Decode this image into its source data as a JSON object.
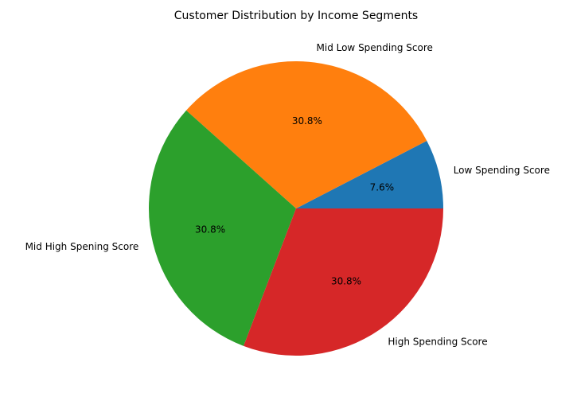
{
  "chart_data": {
    "type": "pie",
    "title": "Customer Distribution by Income Segments",
    "start_angle_deg": 0,
    "direction": "counterclockwise",
    "slices": [
      {
        "label": "Low Spending Score",
        "value": 7.6,
        "pct_label": "7.6%",
        "color": "#1f77b4"
      },
      {
        "label": "Mid Low Spending Score",
        "value": 30.8,
        "pct_label": "30.8%",
        "color": "#ff7f0e"
      },
      {
        "label": "Mid High Spening Score",
        "value": 30.8,
        "pct_label": "30.8%",
        "color": "#2ca02c"
      },
      {
        "label": "High Spending Score",
        "value": 30.8,
        "pct_label": "30.8%",
        "color": "#d62728"
      }
    ]
  }
}
